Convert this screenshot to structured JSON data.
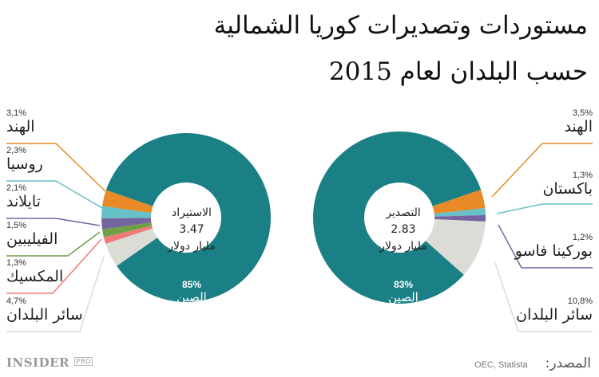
{
  "title": {
    "line1": "مستوردات وتصديرات كوريا الشمالية",
    "line2": "حسب البلدان لعام 2015"
  },
  "source": {
    "label": "المصدر:",
    "value": "OEC, Statista"
  },
  "logo": {
    "text": "INSIDER",
    "badge": "PRO"
  },
  "chart_data": [
    {
      "type": "pie",
      "subtype": "donut",
      "center": {
        "label": "الاستيراد",
        "value": "3.47",
        "unit": "مليار دولار"
      },
      "slices": [
        {
          "name": "سائر البلدان",
          "value": 4.7,
          "label": "4,7%",
          "color": "#dcdcd6"
        },
        {
          "name": "المكسيك",
          "value": 1.3,
          "label": "1,3%",
          "color": "#f07a78"
        },
        {
          "name": "الفيليبين",
          "value": 1.5,
          "label": "1,5%",
          "color": "#6fa046"
        },
        {
          "name": "تايلاند",
          "value": 2.1,
          "label": "2,1%",
          "color": "#7664a0"
        },
        {
          "name": "روسيا",
          "value": 2.3,
          "label": "2,3%",
          "color": "#68c0c8"
        },
        {
          "name": "الهند",
          "value": 3.1,
          "label": "3,1%",
          "color": "#e88a25"
        },
        {
          "name": "الصين",
          "value": 85,
          "label": "85%",
          "color": "#1b8085"
        }
      ]
    },
    {
      "type": "pie",
      "subtype": "donut",
      "center": {
        "label": "التصدير",
        "value": "2.83",
        "unit": "مليار دولار"
      },
      "slices": [
        {
          "name": "الهند",
          "value": 3.5,
          "label": "3,5%",
          "color": "#e88a25"
        },
        {
          "name": "باكستان",
          "value": 1.3,
          "label": "1,3%",
          "color": "#68c0c8"
        },
        {
          "name": "بوركينا فاسو",
          "value": 1.2,
          "label": "1,2%",
          "color": "#7664a0"
        },
        {
          "name": "سائر البلدان",
          "value": 10.8,
          "label": "10,8%",
          "color": "#dcdcd6"
        },
        {
          "name": "الصين",
          "value": 83,
          "label": "83%",
          "color": "#1b8085"
        }
      ]
    }
  ]
}
